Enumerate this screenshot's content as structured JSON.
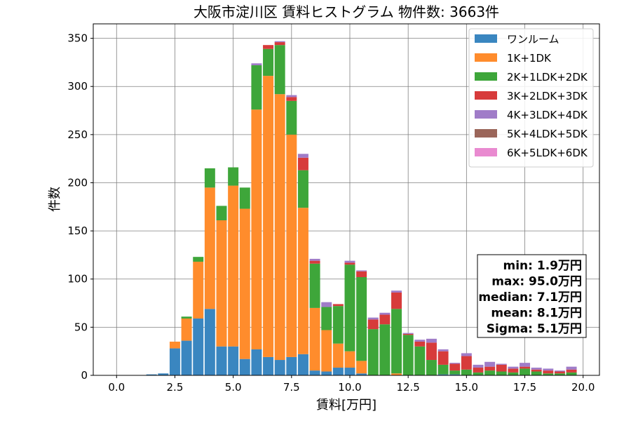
{
  "chart_data": {
    "type": "bar",
    "stacked": true,
    "title": "大阪市淀川区 賃料ヒストグラム  物件数: 3663件",
    "xlabel": "賃料[万円]",
    "ylabel": "件数",
    "xlim": [
      -1.0,
      20.7
    ],
    "ylim": [
      0,
      365
    ],
    "xticks": [
      0.0,
      2.5,
      5.0,
      7.5,
      10.0,
      12.5,
      15.0,
      17.5,
      20.0
    ],
    "xtick_labels": [
      "0.0",
      "2.5",
      "5.0",
      "7.5",
      "10.0",
      "12.5",
      "15.0",
      "17.5",
      "20.0"
    ],
    "yticks": [
      0,
      50,
      100,
      150,
      200,
      250,
      300,
      350
    ],
    "ytick_labels": [
      "0",
      "50",
      "100",
      "150",
      "200",
      "250",
      "300",
      "350"
    ],
    "grid": true,
    "legend_position": "top-right",
    "bin_width": 0.5,
    "x": [
      0.0,
      0.5,
      1.0,
      1.5,
      2.0,
      2.5,
      3.0,
      3.5,
      4.0,
      4.5,
      5.0,
      5.5,
      6.0,
      6.5,
      7.0,
      7.5,
      8.0,
      8.5,
      9.0,
      9.5,
      10.0,
      10.5,
      11.0,
      11.5,
      12.0,
      12.5,
      13.0,
      13.5,
      14.0,
      14.5,
      15.0,
      15.5,
      16.0,
      16.5,
      17.0,
      17.5,
      18.0,
      18.5,
      19.0,
      19.5
    ],
    "series": [
      {
        "name": "ワンルーム",
        "color": "#3a86c0",
        "values": [
          0,
          0,
          0,
          1,
          2,
          28,
          36,
          59,
          69,
          30,
          30,
          17,
          27,
          19,
          16,
          19,
          22,
          5,
          4,
          8,
          8,
          2,
          0,
          0,
          0,
          0,
          0,
          0,
          1,
          1,
          0,
          0,
          0,
          0,
          0,
          0,
          0,
          0,
          0,
          0
        ]
      },
      {
        "name": "1K+1DK",
        "color": "#ff8c2c",
        "values": [
          0,
          0,
          0,
          0,
          0,
          7,
          23,
          59,
          126,
          131,
          167,
          156,
          249,
          292,
          276,
          231,
          152,
          65,
          43,
          25,
          17,
          13,
          0,
          0,
          2,
          0,
          0,
          0,
          0,
          0,
          0,
          0,
          0,
          0,
          0,
          0,
          0,
          0,
          0,
          0
        ]
      },
      {
        "name": "2K+1LDK+2DK",
        "color": "#3ea63a",
        "values": [
          0,
          0,
          0,
          0,
          0,
          0,
          2,
          5,
          20,
          15,
          19,
          22,
          46,
          28,
          51,
          35,
          39,
          46,
          24,
          39,
          90,
          87,
          48,
          53,
          67,
          42,
          30,
          16,
          10,
          4,
          6,
          3,
          5,
          4,
          3,
          7,
          4,
          2,
          2,
          3
        ]
      },
      {
        "name": "3K+2LDK+3DK",
        "color": "#d73b3b",
        "values": [
          0,
          0,
          0,
          0,
          0,
          0,
          0,
          0,
          0,
          0,
          0,
          0,
          0,
          4,
          3,
          4,
          13,
          3,
          0,
          2,
          2,
          6,
          10,
          10,
          17,
          1,
          5,
          18,
          14,
          7,
          14,
          5,
          4,
          7,
          4,
          2,
          2,
          3,
          2,
          3
        ]
      },
      {
        "name": "4K+3LDK+4DK",
        "color": "#a07cc8",
        "values": [
          0,
          0,
          0,
          0,
          0,
          0,
          0,
          0,
          0,
          0,
          0,
          0,
          2,
          0,
          1,
          2,
          4,
          2,
          5,
          0,
          2,
          1,
          2,
          2,
          2,
          1,
          2,
          4,
          2,
          1,
          3,
          3,
          5,
          1,
          2,
          4,
          2,
          2,
          1,
          3
        ]
      },
      {
        "name": "5K+4LDK+5DK",
        "color": "#9b665a",
        "values": [
          0,
          0,
          0,
          0,
          0,
          0,
          0,
          0,
          0,
          0,
          0,
          0,
          0,
          0,
          0,
          0,
          0,
          0,
          0,
          0,
          0,
          0,
          0,
          0,
          0,
          0,
          0,
          0,
          0,
          0,
          0,
          0,
          0,
          0,
          0,
          0,
          0,
          0,
          0,
          0
        ]
      },
      {
        "name": "6K+5LDK+6DK",
        "color": "#e98ad0",
        "values": [
          0,
          0,
          0,
          0,
          0,
          0,
          0,
          0,
          0,
          0,
          0,
          0,
          0,
          0,
          0,
          0,
          0,
          0,
          0,
          0,
          0,
          0,
          0,
          0,
          0,
          0,
          0,
          0,
          0,
          0,
          0,
          0,
          0,
          0,
          0,
          0,
          0,
          0,
          0,
          0
        ]
      }
    ],
    "annotations": [
      "min: 1.9万円",
      "max: 95.0万円",
      "median: 7.1万円",
      "mean: 8.1万円",
      "Sigma: 5.1万円"
    ]
  }
}
